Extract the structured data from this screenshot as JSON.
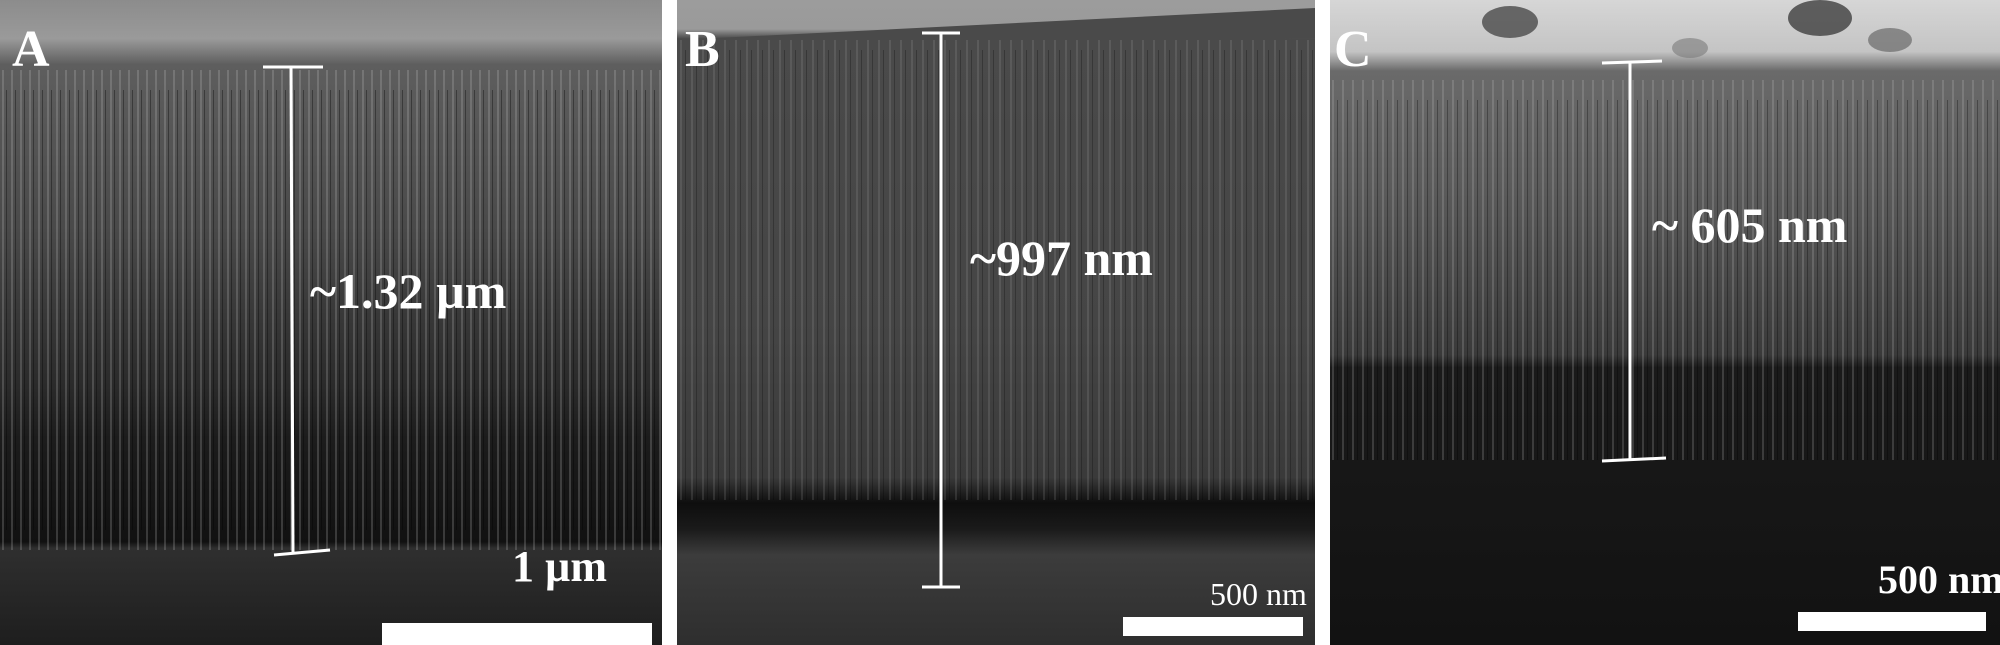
{
  "panels": [
    {
      "letter": "A",
      "measurement": "~1.32 µm",
      "scale_label": "1 µm"
    },
    {
      "letter": "B",
      "measurement": "~997 nm",
      "scale_label": "500 nm"
    },
    {
      "letter": "C",
      "measurement": "~ 605 nm",
      "scale_label": "500 nm"
    }
  ],
  "colors": {
    "annotation": "#ffffff",
    "separator": "#ffffff"
  }
}
